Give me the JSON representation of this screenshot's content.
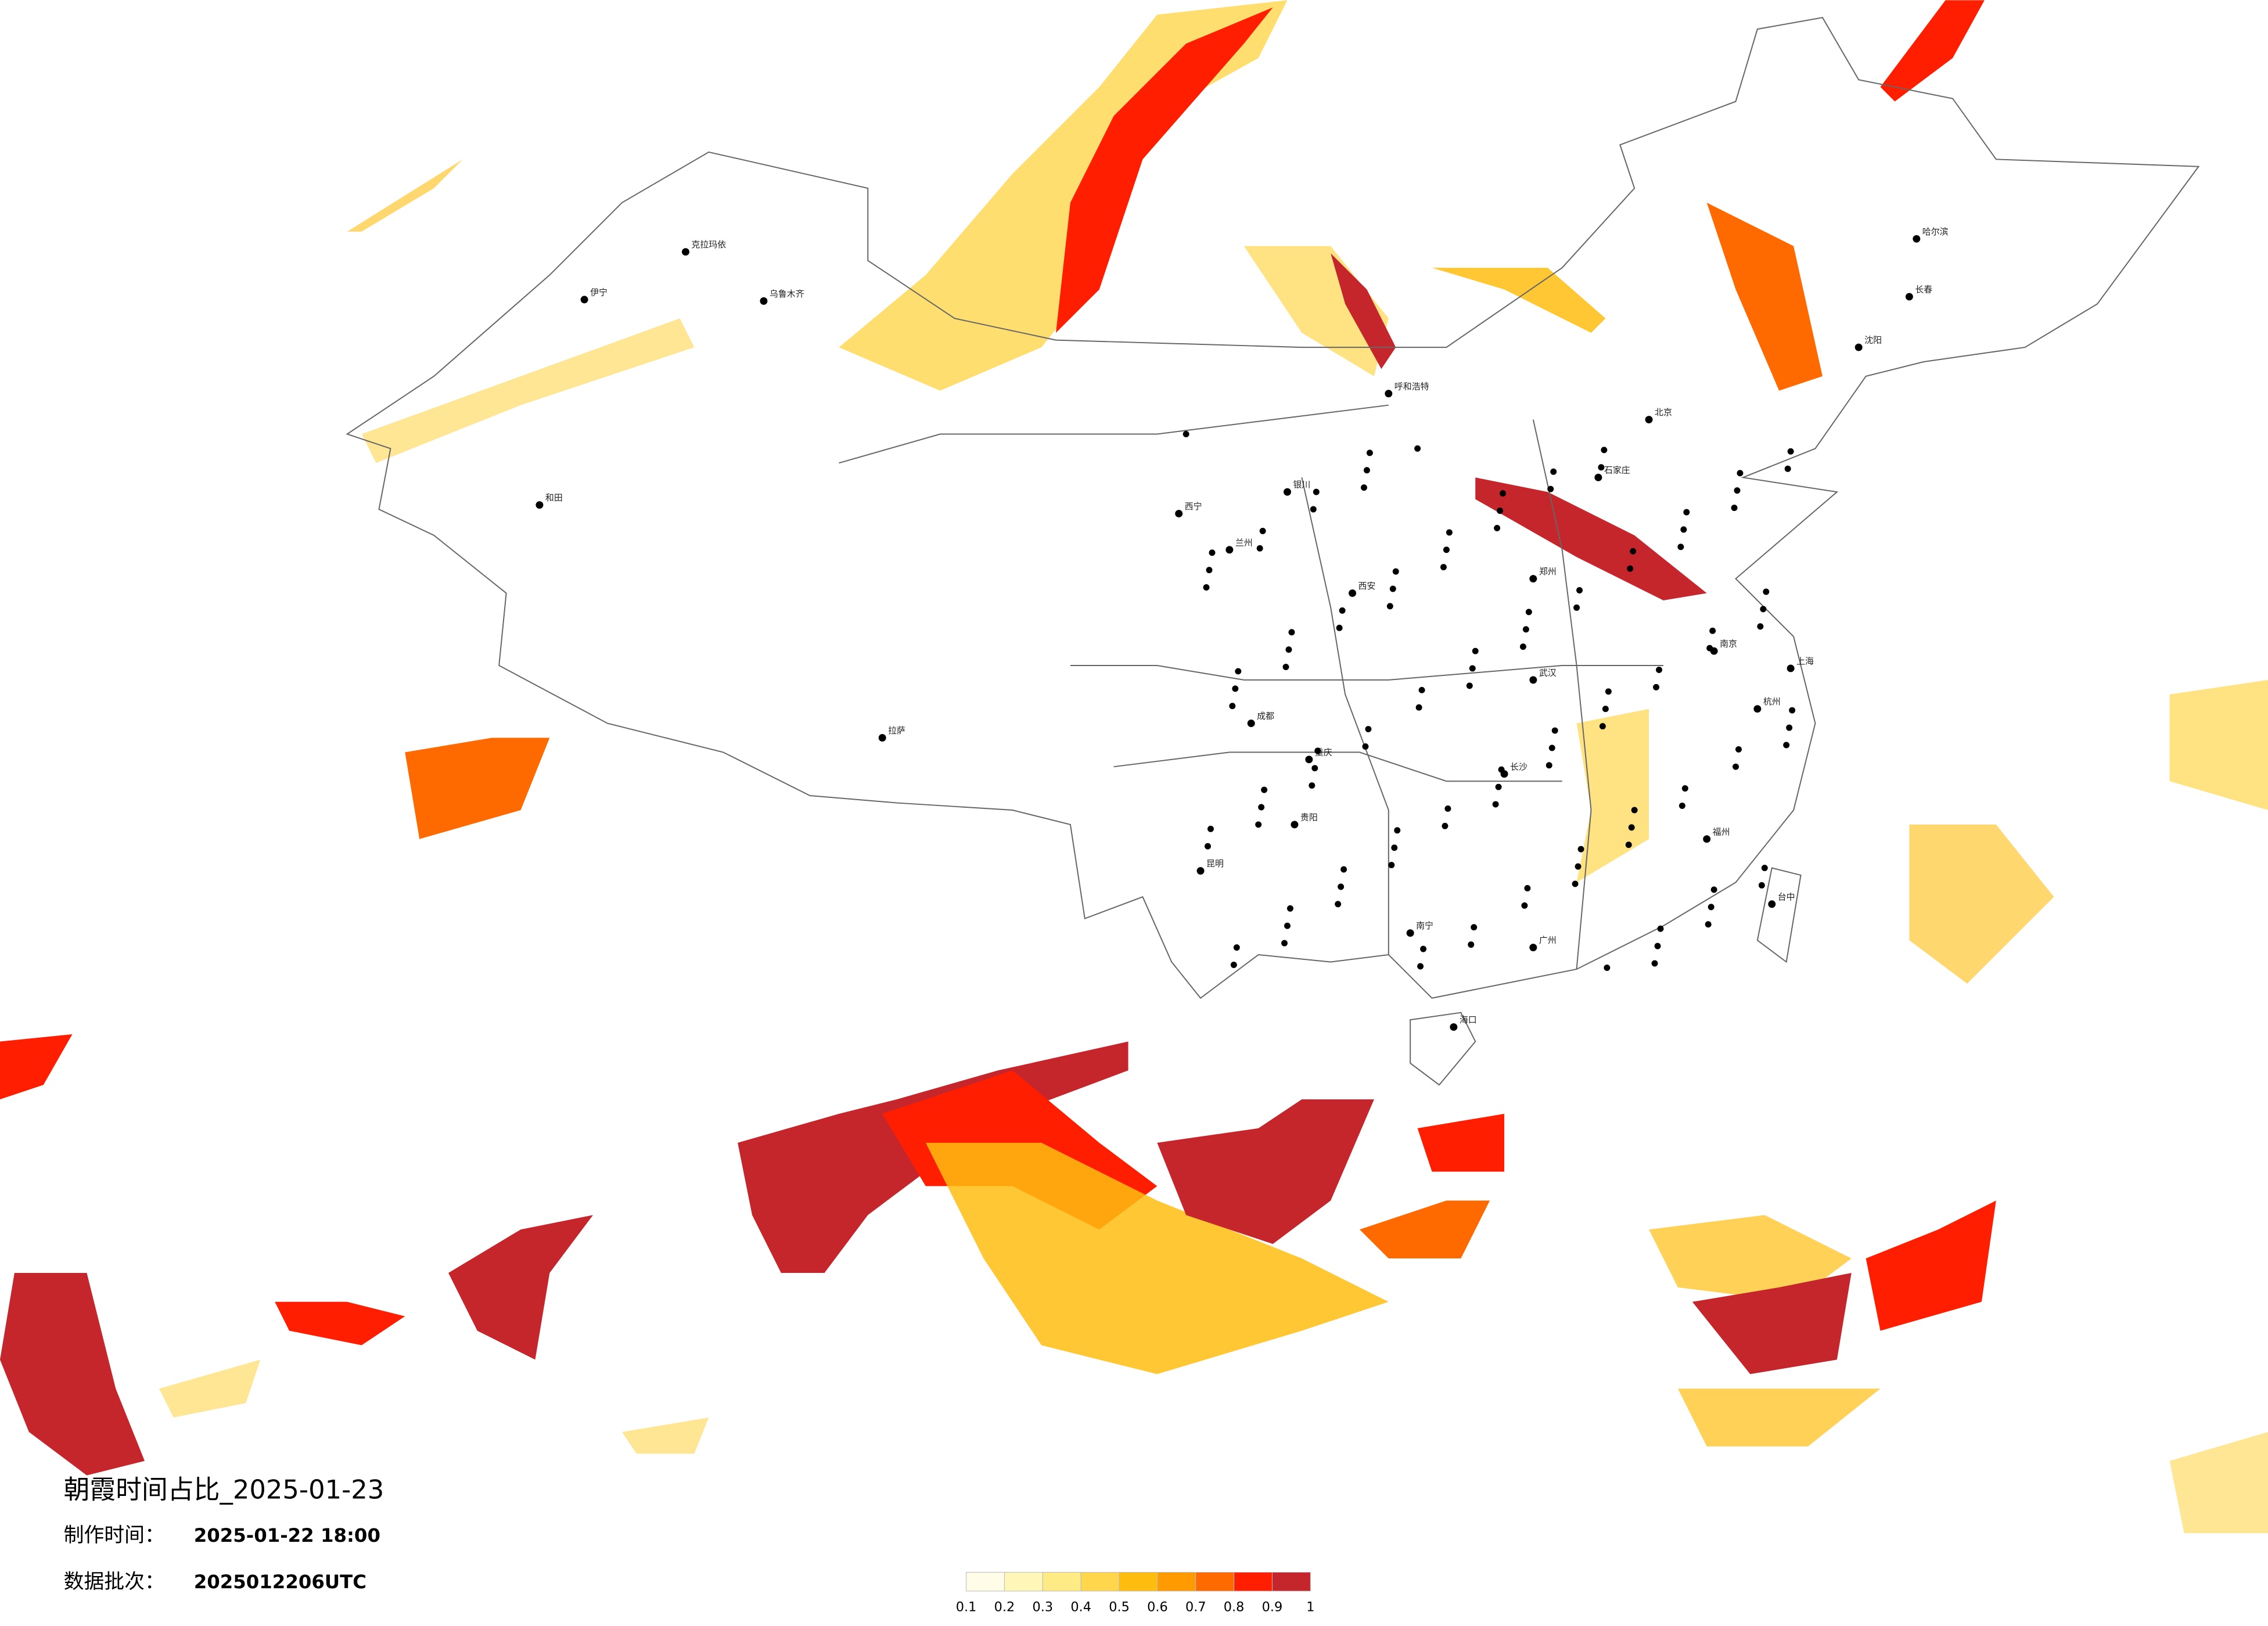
{
  "title": "朝霞时间占比_2025-01-23",
  "info": [
    {
      "label": "制作时间：",
      "value": "2025-01-22 18:00"
    },
    {
      "label": "数据批次：",
      "value": "2025012206UTC"
    }
  ],
  "legend": {
    "ticks": [
      0.1,
      0.2,
      0.3,
      0.4,
      0.5,
      0.6,
      0.7,
      0.8,
      0.9,
      1
    ],
    "colors": [
      "#fffce8",
      "#fff6b8",
      "#ffeb86",
      "#ffd64c",
      "#ffbd0f",
      "#ff9a00",
      "#ff6a00",
      "#ff1e00",
      "#c4262b"
    ]
  },
  "cities": [
    "克拉玛依",
    "乌鲁木齐",
    "伊宁",
    "和田",
    "拉萨",
    "西宁",
    "兰州",
    "银川",
    "呼和浩特",
    "北京",
    "石家庄",
    "郑州",
    "西安",
    "成都",
    "重庆",
    "昆明",
    "贵阳",
    "南宁",
    "长沙",
    "武汉",
    "南京",
    "上海",
    "杭州",
    "福州",
    "广州",
    "海口",
    "哈尔滨",
    "长春",
    "沈阳",
    "台中"
  ]
}
